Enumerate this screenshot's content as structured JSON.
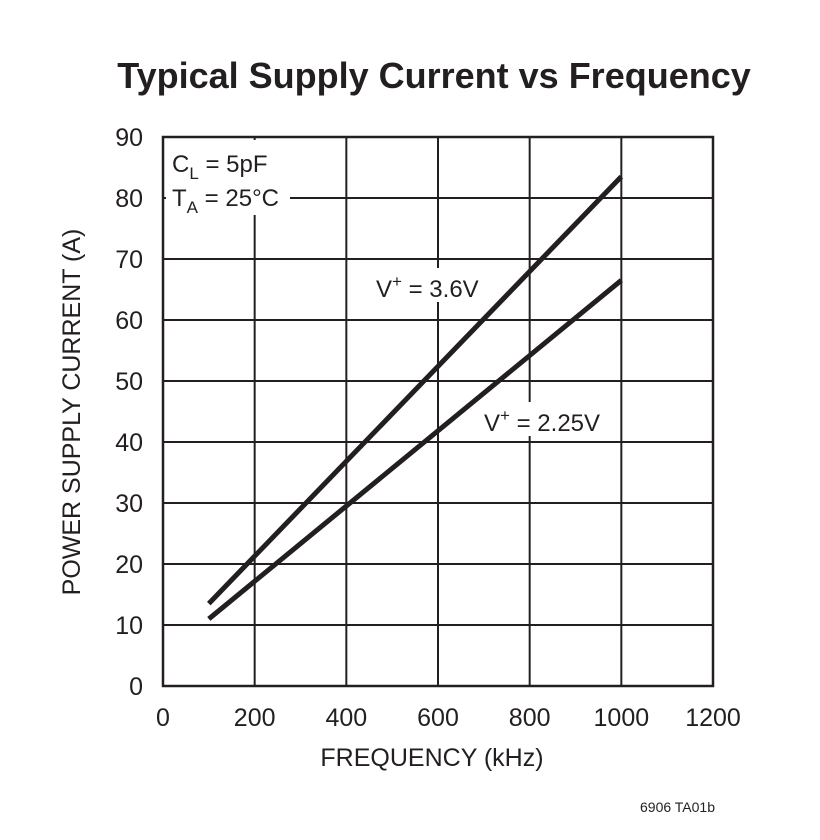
{
  "chart_data": {
    "type": "line",
    "title": "Typical Supply Current vs Frequency",
    "xlabel": "FREQUENCY (kHz)",
    "ylabel": "POWER SUPPLY CURRENT (A)",
    "xlim": [
      0,
      1200
    ],
    "ylim": [
      0,
      90
    ],
    "x_ticks": [
      0,
      200,
      400,
      600,
      800,
      1000,
      1200
    ],
    "y_ticks": [
      0,
      10,
      20,
      30,
      40,
      50,
      60,
      70,
      80,
      90
    ],
    "grid": true,
    "series": [
      {
        "name": "V+ = 3.6V",
        "label_main": "V",
        "label_sup": "+",
        "label_rest": " = 3.6V",
        "x": [
          100,
          1000
        ],
        "y": [
          13.5,
          83.5
        ]
      },
      {
        "name": "V+ = 2.25V",
        "label_main": "V",
        "label_sup": "+",
        "label_rest": " = 2.25V",
        "x": [
          100,
          1000
        ],
        "y": [
          11,
          66.5
        ]
      }
    ],
    "conditions": [
      {
        "main": "C",
        "sub": "L",
        "rest": " = 5pF"
      },
      {
        "main": "T",
        "sub": "A",
        "rest": " = 25°C"
      }
    ],
    "footnote": "6906 TA01b"
  }
}
